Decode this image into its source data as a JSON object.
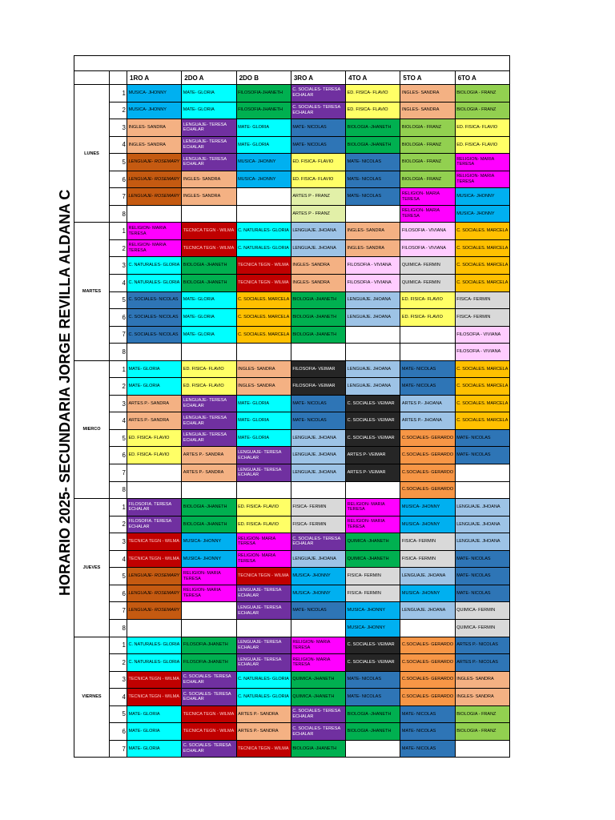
{
  "schedule": {
    "title": "HORARIO 2025- SECUNDARIA JORGE REVILLA ALDANA C",
    "columns": [
      "1RO A",
      "2DO A",
      "2DO B",
      "3RO A",
      "4TO A",
      "5TO A",
      "6TO A"
    ],
    "days": [
      {
        "name": "LUNES",
        "periods": [
          {
            "number": "1",
            "cells": [
              "MUSICA- JHONNY",
              "MATE- GLORIA",
              "FILOSOFIA-JHANETH",
              "C. SOCIALES- TERESA ECHALAR",
              "ED. FISICA- FLAVIO",
              "INGLES- SANDRA",
              "BIOLOGIA - FRANZ"
            ]
          },
          {
            "number": "2",
            "cells": [
              "MUSICA- JHONNY",
              "MATE- GLORIA",
              "FILOSOFIA-JHANETH",
              "C. SOCIALES- TERESA ECHALAR",
              "ED. FISICA- FLAVIO",
              "INGLES- SANDRA",
              "BIOLOGIA - FRANZ"
            ]
          },
          {
            "number": "3",
            "cells": [
              "INGLES- SANDRA",
              "LENGUAJE- TERESA ECHALAR",
              "MATE- GLORIA",
              "MATE- NICOLAS",
              "BIOLOGIA -JHANETH",
              "BIOLOGIA - FRANZ",
              "ED. FISICA- FLAVIO"
            ]
          },
          {
            "number": "4",
            "cells": [
              "INGLES- SANDRA",
              "LENGUAJE- TERESA ECHALAR",
              "MATE- GLORIA",
              "MATE- NICOLAS",
              "BIOLOGIA -JHANETH",
              "BIOLOGIA - FRANZ",
              "ED. FISICA- FLAVIO"
            ]
          },
          {
            "number": "5",
            "cells": [
              "LENGUAJE- ROSEMARY",
              "LENGUAJE- TERESA ECHALAR",
              "MUSICA- JHONNY",
              "ED. FISICA- FLAVIO",
              "MATE- NICOLAS",
              "BIOLOGIA - FRANZ",
              "RELIGION- MARIA TERESA"
            ]
          },
          {
            "number": "6",
            "cells": [
              "LENGUAJE- ROSEMARY",
              "INGLES- SANDRA",
              "MUSICA- JHONNY",
              "ED. FISICA- FLAVIO",
              "MATE- NICOLAS",
              "BIOLOGIA - FRANZ",
              "RELIGION- MARIA TERESA"
            ]
          },
          {
            "number": "7",
            "cells": [
              "LENGUAJE- ROSEMARY",
              "INGLES- SANDRA",
              "",
              "ARTES P - FRANZ",
              "MATE- NICOLAS",
              "RELIGION- MARIA TERESA",
              "MUSICA- JHONNY"
            ]
          },
          {
            "number": "8",
            "cells": [
              "",
              "",
              "",
              "ARTES P - FRANZ",
              "",
              "RELIGION- MARIA TERESA",
              "MUSICA- JHONNY"
            ]
          }
        ]
      },
      {
        "name": "MARTES",
        "periods": [
          {
            "number": "1",
            "cells": [
              "RELIGION- MARIA TERESA",
              "TECNICA TEGN - WILMA",
              "C. NATURALES- GLORIA",
              "LENGUAJE. JHOANA",
              "INGLES- SANDRA",
              "FILOSOFIA - VIVIANA",
              "C. SOCIALES. MARCELA"
            ]
          },
          {
            "number": "2",
            "cells": [
              "RELIGION- MARIA TERESA",
              "TECNICA TEGN - WILMA",
              "C. NATURALES- GLORIA",
              "LENGUAJE. JHOANA",
              "INGLES- SANDRA",
              "FILOSOFIA - VIVIANA",
              "C. SOCIALES. MARCELA"
            ]
          },
          {
            "number": "3",
            "cells": [
              "C. NATURALES- GLORIA",
              "BIOLOGIA -JHANETH",
              "TECNICA TEGN - WILMA",
              "INGLES- SANDRA",
              "FILOSOFIA - VIVIANA",
              "QUIMICA- FERMIN",
              "C. SOCIALES. MARCELA"
            ]
          },
          {
            "number": "4",
            "cells": [
              "C. NATURALES- GLORIA",
              "BIOLOGIA -JHANETH",
              "TECNICA TEGN - WILMA",
              "INGLES- SANDRA",
              "FILOSOFIA - VIVIANA",
              "QUIMICA- FERMIN",
              "C. SOCIALES. MARCELA"
            ]
          },
          {
            "number": "5",
            "cells": [
              "C. SOCIALES- NICOLAS",
              "MATE- GLORIA",
              "C. SOCIALES. MARCELA",
              "BIOLOGIA -JHANETH",
              "LENGUAJE. JHOANA",
              "ED. FISICA- FLAVIO",
              "FISICA- FERMIN"
            ]
          },
          {
            "number": "6",
            "cells": [
              "C. SOCIALES- NICOLAS",
              "MATE- GLORIA",
              "C. SOCIALES. MARCELA",
              "BIOLOGIA -JHANETH",
              "LENGUAJE. JHOANA",
              "ED. FISICA- FLAVIO",
              "FISICA- FERMIN"
            ]
          },
          {
            "number": "7",
            "cells": [
              "C. SOCIALES- NICOLAS",
              "MATE- GLORIA",
              "C. SOCIALES. MARCELA",
              "BIOLOGIA -JHANETH",
              "",
              "",
              "FILOSOFIA - VIVIANA"
            ]
          },
          {
            "number": "8",
            "cells": [
              "",
              "",
              "",
              "",
              "",
              "",
              "FILOSOFIA - VIVIANA"
            ]
          }
        ]
      },
      {
        "name": "MIERCO",
        "periods": [
          {
            "number": "1",
            "cells": [
              "MATE- GLORIA",
              "ED. FISICA- FLAVIO",
              "INGLES- SANDRA",
              "FILOSOFIA- VEIMAR",
              "LENGUAJE. JHOANA",
              "MATE- NICOLAS",
              "C. SOCIALES. MARCELA"
            ]
          },
          {
            "number": "2",
            "cells": [
              "MATE- GLORIA",
              "ED. FISICA- FLAVIO",
              "INGLES- SANDRA",
              "FILOSOFIA- VEIMAR",
              "LENGUAJE. JHOANA",
              "MATE- NICOLAS",
              "C. SOCIALES. MARCELA"
            ]
          },
          {
            "number": "3",
            "cells": [
              "ARTES P.- SANDRA",
              "LENGUAJE- TERESA ECHALAR",
              "MATE- GLORIA",
              "MATE- NICOLAS",
              "C. SOCIALES- VEIMAR",
              "ARTES P.- JHOANA",
              "C. SOCIALES. MARCELA"
            ]
          },
          {
            "number": "4",
            "cells": [
              "ARTES P.- SANDRA",
              "LENGUAJE- TERESA ECHALAR",
              "MATE- GLORIA",
              "MATE- NICOLAS",
              "C. SOCIALES- VEIMAR",
              "ARTES P.- JHOANA",
              "C. SOCIALES. MARCELA"
            ]
          },
          {
            "number": "5",
            "cells": [
              "ED. FISICA- FLAVIO",
              "LENGUAJE- TERESA ECHALAR",
              "MATE- GLORIA",
              "LENGUAJE. JHOANA",
              "C. SOCIALES- VEIMAR",
              "C.SOCIALES- GERARDO",
              "MATE- NICOLAS"
            ]
          },
          {
            "number": "6",
            "cells": [
              "ED. FISICA- FLAVIO",
              "ARTES P.- SANDRA",
              "LENGUAJE- TERESA ECHALAR",
              "LENGUAJE. JHOANA",
              "ARTES P- VEIMAR",
              "C.SOCIALES- GERARDO",
              "MATE- NICOLAS"
            ]
          },
          {
            "number": "7",
            "cells": [
              "",
              "ARTES P.- SANDRA",
              "LENGUAJE- TERESA ECHALAR",
              "LENGUAJE. JHOANA",
              "ARTES P- VEIMAR",
              "C.SOCIALES- GERARDO",
              ""
            ]
          },
          {
            "number": "8",
            "cells": [
              "",
              "",
              "",
              "",
              "",
              "C.SOCIALES- GERARDO",
              ""
            ]
          }
        ]
      },
      {
        "name": "JUEVES",
        "periods": [
          {
            "number": "1",
            "cells": [
              "FILOSOFIA. TERESA ECHALAR",
              "BIOLOGIA -JHANETH",
              "ED. FISICA- FLAVIO",
              "FISICA- FERMIN",
              "RELIGION- MARIA TERESA",
              "MUSICA- JHONNY",
              "LENGUAJE. JHOANA"
            ]
          },
          {
            "number": "2",
            "cells": [
              "FILOSOFIA. TERESA ECHALAR",
              "BIOLOGIA -JHANETH",
              "ED. FISICA- FLAVIO",
              "FISICA- FERMIN",
              "RELIGION- MARIA TERESA",
              "MUSICA- JHONNY",
              "LENGUAJE. JHOANA"
            ]
          },
          {
            "number": "3",
            "cells": [
              "TECNICA TEGN - WILMA",
              "MUSICA- JHONNY",
              "RELIGION- MARIA TERESA",
              "C. SOCIALES- TERESA ECHALAR",
              "QUIMICA -JHANETH",
              "FISICA- FERMIN",
              "LENGUAJE. JHOANA"
            ]
          },
          {
            "number": "4",
            "cells": [
              "TECNICA TEGN - WILMA",
              "MUSICA- JHONNY",
              "RELIGION- MARIA TERESA",
              "LENGUAJE. JHOANA",
              "QUIMICA -JHANETH",
              "FISICA- FERMIN",
              "MATE- NICOLAS"
            ]
          },
          {
            "number": "5",
            "cells": [
              "LENGUAJE- ROSEMARY",
              "RELIGION- MARIA TERESA",
              "TECNICA TEGN - WILMA",
              "MUSICA- JHONNY",
              "FISICA- FERMIN",
              "LENGUAJE. JHOANA",
              "MATE- NICOLAS"
            ]
          },
          {
            "number": "6",
            "cells": [
              "LENGUAJE- ROSEMARY",
              "RELIGION- MARIA TERESA",
              "LENGUAJE- TERESA ECHALAR",
              "MUSICA- JHONNY",
              "FISICA- FERMIN",
              "MUSICA- JHONNY",
              "MATE- NICOLAS"
            ]
          },
          {
            "number": "7",
            "cells": [
              "LENGUAJE- ROSEMARY",
              "",
              "LENGUAJE- TERESA ECHALAR",
              "MATE- NICOLAS",
              "MUSICA- JHONNY",
              "LENGUAJE. JHOANA",
              "QUIMICA- FERMIN"
            ]
          },
          {
            "number": "8",
            "cells": [
              "",
              "",
              "",
              "",
              "MUSICA- JHONNY",
              "",
              "QUIMICA- FERMIN"
            ]
          }
        ]
      },
      {
        "name": "VIERNES",
        "periods": [
          {
            "number": "1",
            "cells": [
              "C. NATURALES- GLORIA",
              "FILOSOFIA-JHANETH",
              "LENGUAJE- TERESA ECHALAR",
              "RELIGION- MARIA TERESA",
              "C. SOCIALES- VEIMAR",
              "C.SOCIALES- GERARDO",
              "ARTES P.- NICOLAS"
            ]
          },
          {
            "number": "2",
            "cells": [
              "C. NATURALES- GLORIA",
              "FILOSOFIA-JHANETH",
              "LENGUAJE- TERESA ECHALAR",
              "RELIGION- MARIA TERESA",
              "C. SOCIALES- VEIMAR",
              "C.SOCIALES- GERARDO",
              "ARTES P.- NICOLAS"
            ]
          },
          {
            "number": "3",
            "cells": [
              "TECNICA TEGN - WILMA",
              "C. SOCIALES- TERESA ECHALAR",
              "C. NATURALES- GLORIA",
              "QUIMICA -JHANETH",
              "MATE- NICOLAS",
              "C.SOCIALES- GERARDO",
              "INGLES- SANDRA"
            ]
          },
          {
            "number": "4",
            "cells": [
              "TECNICA TEGN - WILMA",
              "C. SOCIALES- TERESA ECHALAR",
              "C. NATURALES- GLORIA",
              "QUIMICA -JHANETH",
              "MATE- NICOLAS",
              "C.SOCIALES- GERARDO",
              "INGLES- SANDRA"
            ]
          },
          {
            "number": "5",
            "cells": [
              "MATE- GLORIA",
              "TECNICA TEGN - WILMA",
              "ARTES P.- SANDRA",
              "C. SOCIALES- TERESA ECHALAR",
              "BIOLOGIA -JHANETH",
              "MATE- NICOLAS",
              "BIOLOGIA - FRANZ"
            ]
          },
          {
            "number": "6",
            "cells": [
              "MATE- GLORIA",
              "TECNICA TEGN - WILMA",
              "ARTES P.- SANDRA",
              "C. SOCIALES- TERESA ECHALAR",
              "BIOLOGIA -JHANETH",
              "MATE- NICOLAS",
              "BIOLOGIA - FRANZ"
            ]
          },
          {
            "number": "7",
            "cells": [
              "MATE- GLORIA",
              "C. SOCIALES- TERESA ECHALAR",
              "TECNICA TEGN - WILMA",
              "BIOLOGIA -JHANETH",
              "",
              "MATE- NICOLAS",
              ""
            ]
          }
        ]
      }
    ]
  },
  "subject_colors": {
    "MUSICA- JHONNY": {
      "bg": "#00b0f0",
      "fg": "#000000"
    },
    "MATE- GLORIA": {
      "bg": "#00ffff",
      "fg": "#000000"
    },
    "C. NATURALES- GLORIA": {
      "bg": "#00ffff",
      "fg": "#000000"
    },
    "FILOSOFIA-JHANETH": {
      "bg": "#00b050",
      "fg": "#000000"
    },
    "BIOLOGIA -JHANETH": {
      "bg": "#00b050",
      "fg": "#000000"
    },
    "QUIMICA -JHANETH": {
      "bg": "#00b050",
      "fg": "#000000"
    },
    "C. SOCIALES- TERESA ECHALAR": {
      "bg": "#7030a0",
      "fg": "#ffffff"
    },
    "LENGUAJE- TERESA ECHALAR": {
      "bg": "#7030a0",
      "fg": "#ffffff"
    },
    "FILOSOFIA. TERESA ECHALAR": {
      "bg": "#7030a0",
      "fg": "#ffffff"
    },
    "ED. FISICA- FLAVIO": {
      "bg": "#ffff66",
      "fg": "#000000"
    },
    "INGLES- SANDRA": {
      "bg": "#f4b183",
      "fg": "#000000"
    },
    "ARTES P.- SANDRA": {
      "bg": "#f4b183",
      "fg": "#000000"
    },
    "BIOLOGIA - FRANZ": {
      "bg": "#92d050",
      "fg": "#000000"
    },
    "ARTES P - FRANZ": {
      "bg": "#e2f0a8",
      "fg": "#000000"
    },
    "MATE- NICOLAS": {
      "bg": "#2e75b6",
      "fg": "#000000"
    },
    "C. SOCIALES- NICOLAS": {
      "bg": "#2e75b6",
      "fg": "#000000"
    },
    "ARTES P.- NICOLAS": {
      "bg": "#2e75b6",
      "fg": "#000000"
    },
    "LENGUAJE- ROSEMARY": {
      "bg": "#c55a11",
      "fg": "#000000",
      "style": "italic"
    },
    "RELIGION- MARIA TERESA": {
      "bg": "#ff00ff",
      "fg": "#000000"
    },
    "TECNICA TEGN - WILMA": {
      "bg": "#c00000",
      "fg": "#ffd0d0"
    },
    "LENGUAJE. JHOANA": {
      "bg": "#9dc3e6",
      "fg": "#000000"
    },
    "ARTES P.- JHOANA": {
      "bg": "#9dc3e6",
      "fg": "#000000"
    },
    "FILOSOFIA - VIVIANA": {
      "bg": "#ffccff",
      "fg": "#000000"
    },
    "C. SOCIALES. MARCELA": {
      "bg": "#ffc000",
      "fg": "#000000"
    },
    "QUIMICA- FERMIN": {
      "bg": "#d9d9d9",
      "fg": "#000000"
    },
    "FISICA- FERMIN": {
      "bg": "#d9d9d9",
      "fg": "#000000"
    },
    "FILOSOFIA- VEIMAR": {
      "bg": "#262626",
      "fg": "#ffffff"
    },
    "C. SOCIALES- VEIMAR": {
      "bg": "#262626",
      "fg": "#ffffff"
    },
    "ARTES P- VEIMAR": {
      "bg": "#262626",
      "fg": "#ffffff"
    },
    "C.SOCIALES- GERARDO": {
      "bg": "#f79646",
      "fg": "#000000"
    }
  }
}
